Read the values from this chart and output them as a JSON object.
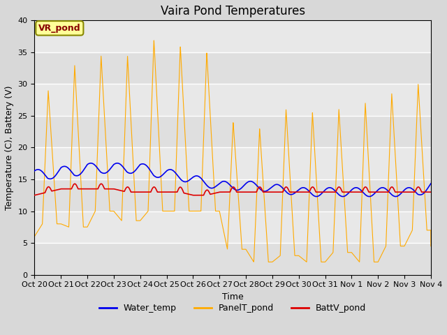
{
  "title": "Vaira Pond Temperatures",
  "xlabel": "Time",
  "ylabel": "Temperature (C), Battery (V)",
  "ylim": [
    0,
    40
  ],
  "yticks": [
    0,
    5,
    10,
    15,
    20,
    25,
    30,
    35,
    40
  ],
  "xtick_labels": [
    "Oct 20",
    "Oct 21",
    "Oct 22",
    "Oct 23",
    "Oct 24",
    "Oct 25",
    "Oct 26",
    "Oct 27",
    "Oct 28",
    "Oct 29",
    "Oct 30",
    "Oct 31",
    "Nov 1",
    "Nov 2",
    "Nov 3",
    "Nov 4"
  ],
  "water_temp_color": "#0000ee",
  "panel_temp_color": "#ffaa00",
  "batt_color": "#dd0000",
  "fig_bg_color": "#d8d8d8",
  "plot_bg_color": "#e8e8e8",
  "annotation_text": "VR_pond",
  "annotation_box_color": "#ffff99",
  "annotation_text_color": "#880000",
  "legend_labels": [
    "Water_temp",
    "PanelT_pond",
    "BattV_pond"
  ],
  "title_fontsize": 12,
  "axis_fontsize": 9,
  "tick_fontsize": 8,
  "panel_peaks": [
    9,
    29,
    33,
    34.5,
    34.5,
    37,
    36,
    35,
    24,
    23,
    26,
    25.5,
    26,
    27,
    28.5,
    30
  ],
  "panel_nights": [
    6,
    8,
    7.5,
    10,
    8.5,
    10,
    10,
    10,
    4,
    2,
    3,
    2,
    3.5,
    2,
    4.5,
    7
  ],
  "water_vals": [
    16,
    15.5,
    16.5,
    16,
    17,
    16.5,
    17,
    16.5,
    17,
    16,
    16,
    15.5,
    15,
    14.5,
    14,
    14,
    14,
    14,
    13.5,
    13.5,
    13,
    13,
    13,
    13,
    13,
    13,
    13,
    13,
    13,
    13,
    14
  ],
  "batt_base": 13.0,
  "batt_step_vals": [
    12.5,
    13,
    13.5,
    13.5,
    13.5,
    13.5,
    13.5,
    13,
    13,
    13,
    13,
    13,
    12.5,
    12.5,
    13,
    13,
    13,
    13,
    13,
    13,
    13,
    13,
    13,
    13,
    13,
    13,
    13,
    13,
    13,
    13,
    13
  ]
}
